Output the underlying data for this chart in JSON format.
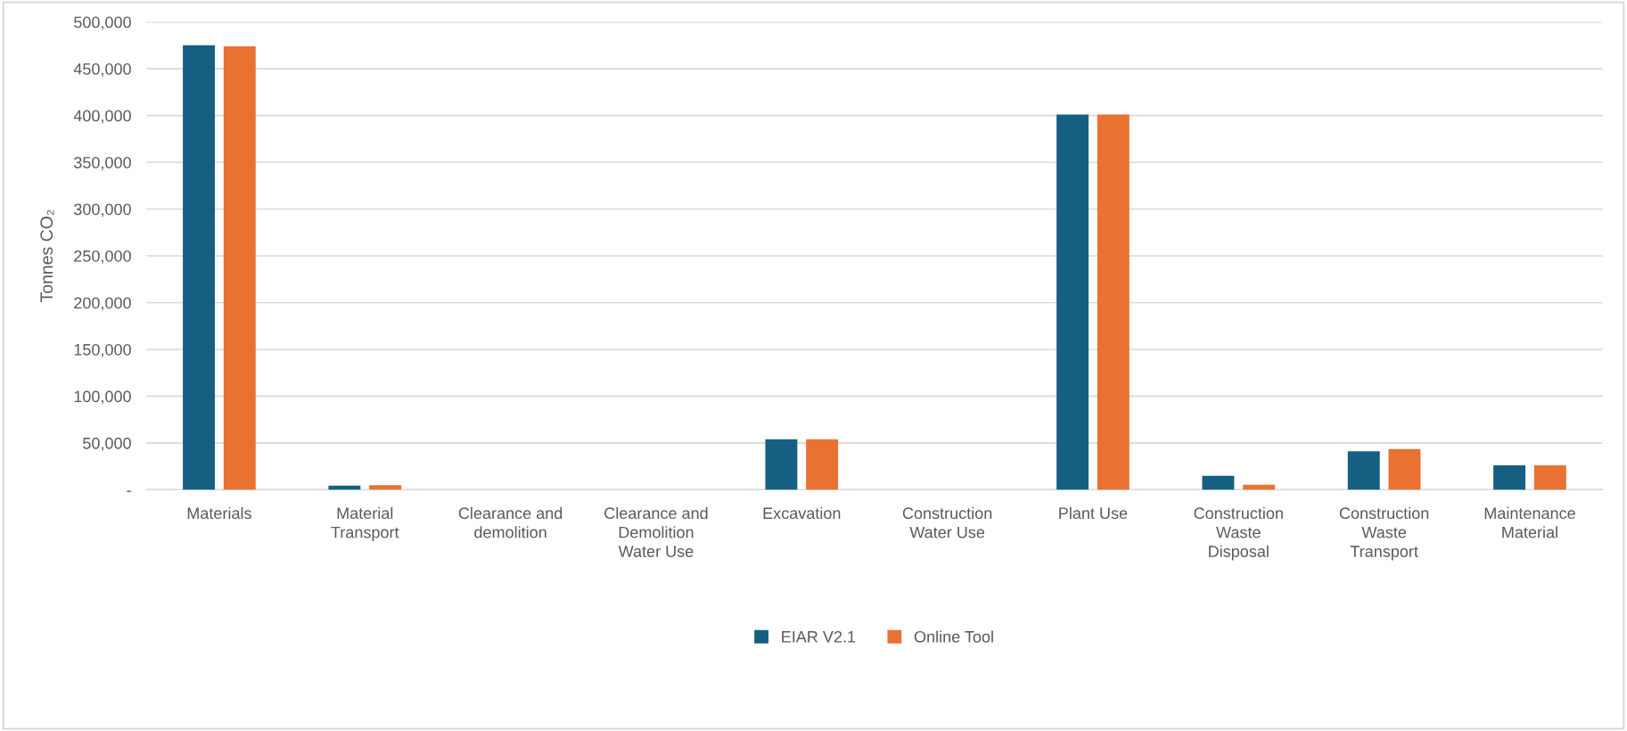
{
  "chart_data": {
    "type": "bar",
    "ylabel": "Tonnes CO₂",
    "categories": [
      "Materials",
      "Material\nTransport",
      "Clearance and\ndemolition",
      "Clearance and\nDemolition\nWater Use",
      "Excavation",
      "Construction\nWater Use",
      "Plant Use",
      "Construction\nWaste\nDisposal",
      "Construction\nWaste\nTransport",
      "Maintenance\nMaterial"
    ],
    "series": [
      {
        "name": "EIAR V2.1",
        "color": "#156082",
        "values": [
          475000,
          4500,
          0,
          0,
          54000,
          0,
          401000,
          15000,
          41000,
          26000
        ]
      },
      {
        "name": "Online Tool",
        "color": "#e97132",
        "values": [
          474000,
          5000,
          0,
          0,
          54000,
          0,
          401000,
          5500,
          43500,
          26000
        ]
      }
    ],
    "ylim": [
      0,
      500000
    ],
    "yticks": [
      {
        "value": 0,
        "label": "-"
      },
      {
        "value": 50000,
        "label": "50,000"
      },
      {
        "value": 100000,
        "label": "100,000"
      },
      {
        "value": 150000,
        "label": "150,000"
      },
      {
        "value": 200000,
        "label": "200,000"
      },
      {
        "value": 250000,
        "label": "250,000"
      },
      {
        "value": 300000,
        "label": "300,000"
      },
      {
        "value": 350000,
        "label": "350,000"
      },
      {
        "value": 400000,
        "label": "400,000"
      },
      {
        "value": 450000,
        "label": "450,000"
      },
      {
        "value": 500000,
        "label": "500,000"
      }
    ],
    "grid": "y",
    "legend": "bottom"
  }
}
